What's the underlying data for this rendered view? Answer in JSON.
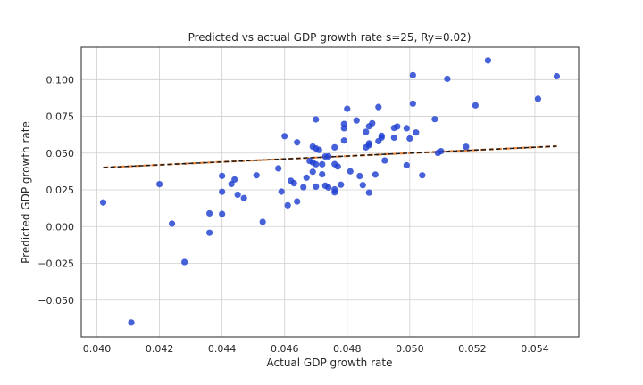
{
  "chart_data": {
    "type": "scatter",
    "title": "Predicted vs actual GDP growth rate s=25, Ry=0.02)",
    "xlabel": "Actual GDP growth rate",
    "ylabel": "Predicted GDP growth rate",
    "xlim": [
      0.0395,
      0.0554
    ],
    "ylim": [
      -0.075,
      0.122
    ],
    "xticks": [
      "0.040",
      "0.042",
      "0.044",
      "0.046",
      "0.048",
      "0.050",
      "0.052",
      "0.054"
    ],
    "yticks": [
      "−0.050",
      "−0.025",
      "0.000",
      "0.025",
      "0.050",
      "0.075",
      "0.100"
    ],
    "grid": true,
    "colors": {
      "points": "#1f3fd1",
      "fit_line_outer": "#e8833a",
      "fit_line_inner": "#1a1a1a"
    },
    "fit_line": {
      "x": [
        0.0402,
        0.0547
      ],
      "y": [
        0.0402,
        0.0547
      ]
    },
    "points": [
      [
        0.0402,
        0.0164
      ],
      [
        0.0411,
        -0.0652
      ],
      [
        0.042,
        0.0289
      ],
      [
        0.0424,
        0.002
      ],
      [
        0.0428,
        -0.0241
      ],
      [
        0.0436,
        0.009
      ],
      [
        0.0436,
        -0.0042
      ],
      [
        0.044,
        0.0237
      ],
      [
        0.044,
        0.0345
      ],
      [
        0.044,
        0.0086
      ],
      [
        0.0443,
        0.029
      ],
      [
        0.0444,
        0.032
      ],
      [
        0.0445,
        0.0217
      ],
      [
        0.0447,
        0.0194
      ],
      [
        0.0451,
        0.0349
      ],
      [
        0.0453,
        0.0032
      ],
      [
        0.0458,
        0.0396
      ],
      [
        0.0459,
        0.0238
      ],
      [
        0.046,
        0.0615
      ],
      [
        0.0461,
        0.0145
      ],
      [
        0.0462,
        0.0312
      ],
      [
        0.0463,
        0.0295
      ],
      [
        0.0464,
        0.0171
      ],
      [
        0.0464,
        0.0573
      ],
      [
        0.0466,
        0.0268
      ],
      [
        0.0467,
        0.0333
      ],
      [
        0.0468,
        0.0447
      ],
      [
        0.0469,
        0.0373
      ],
      [
        0.0469,
        0.0544
      ],
      [
        0.0469,
        0.0437
      ],
      [
        0.047,
        0.0532
      ],
      [
        0.047,
        0.0424
      ],
      [
        0.047,
        0.0729
      ],
      [
        0.047,
        0.0272
      ],
      [
        0.0471,
        0.0522
      ],
      [
        0.0472,
        0.0424
      ],
      [
        0.0472,
        0.0356
      ],
      [
        0.0473,
        0.0278
      ],
      [
        0.0473,
        0.0477
      ],
      [
        0.0474,
        0.0478
      ],
      [
        0.0474,
        0.0266
      ],
      [
        0.0476,
        0.0425
      ],
      [
        0.0476,
        0.0539
      ],
      [
        0.0476,
        0.0233
      ],
      [
        0.0476,
        0.0253
      ],
      [
        0.0477,
        0.0409
      ],
      [
        0.0478,
        0.0285
      ],
      [
        0.0479,
        0.0585
      ],
      [
        0.0479,
        0.0669
      ],
      [
        0.0479,
        0.0698
      ],
      [
        0.048,
        0.0801
      ],
      [
        0.0481,
        0.0376
      ],
      [
        0.0483,
        0.0722
      ],
      [
        0.0484,
        0.0344
      ],
      [
        0.0485,
        0.0282
      ],
      [
        0.0486,
        0.0539
      ],
      [
        0.0486,
        0.0644
      ],
      [
        0.0487,
        0.0231
      ],
      [
        0.0487,
        0.0554
      ],
      [
        0.0487,
        0.0682
      ],
      [
        0.0487,
        0.0566
      ],
      [
        0.0488,
        0.0703
      ],
      [
        0.0489,
        0.0354
      ],
      [
        0.049,
        0.0581
      ],
      [
        0.049,
        0.0813
      ],
      [
        0.0491,
        0.0618
      ],
      [
        0.0491,
        0.0606
      ],
      [
        0.0492,
        0.045
      ],
      [
        0.0495,
        0.0605
      ],
      [
        0.0495,
        0.0671
      ],
      [
        0.0496,
        0.0681
      ],
      [
        0.0499,
        0.0417
      ],
      [
        0.0499,
        0.0669
      ],
      [
        0.05,
        0.0599
      ],
      [
        0.0501,
        0.0836
      ],
      [
        0.0501,
        0.103
      ],
      [
        0.0502,
        0.064
      ],
      [
        0.0504,
        0.0349
      ],
      [
        0.0508,
        0.0731
      ],
      [
        0.0509,
        0.0501
      ],
      [
        0.051,
        0.0513
      ],
      [
        0.0512,
        0.1005
      ],
      [
        0.0518,
        0.0543
      ],
      [
        0.0521,
        0.0824
      ],
      [
        0.0525,
        0.113
      ],
      [
        0.0541,
        0.0869
      ],
      [
        0.0547,
        0.1023
      ]
    ]
  }
}
